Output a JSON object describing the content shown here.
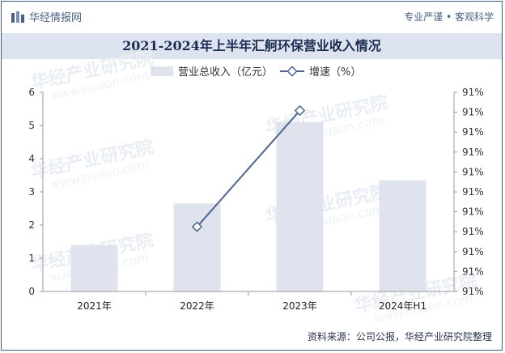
{
  "header": {
    "brand_name": "华经情报网",
    "tagline": "专业严谨 • 客观科学"
  },
  "chart_title": "2021-2024年上半年汇舸环保营业收入情况",
  "source_note": "资料来源：公司公报，华经产业研究院整理",
  "watermark": {
    "text": "华经产业研究院",
    "url": "www.huaon.com"
  },
  "colors": {
    "bar": "#dfe3ee",
    "line": "#4d6691",
    "border": "#3d5a8c",
    "title_band": "#dde4ef"
  },
  "chart_data": {
    "type": "bar",
    "title": "2021-2024年上半年汇舸环保营业收入情况",
    "categories": [
      "2021年",
      "2022年",
      "2023年",
      "2024年H1"
    ],
    "series": [
      {
        "name": "营业总收入（亿元）",
        "type": "bar",
        "axis": "left",
        "values": [
          1.4,
          2.65,
          5.1,
          3.35
        ]
      },
      {
        "name": "增速（%）",
        "type": "line",
        "axis": "right",
        "values": [
          null,
          1.95,
          5.45,
          null
        ]
      }
    ],
    "ylim": [
      0,
      6
    ],
    "yticks": [
      0,
      1,
      2,
      3,
      4,
      5,
      6
    ],
    "y2_tick_labels": [
      "91%",
      "91%",
      "91%",
      "91%",
      "91%",
      "91%",
      "91%",
      "91%",
      "91%",
      "91%",
      "91%"
    ],
    "grid": false,
    "legend": "top-center"
  }
}
